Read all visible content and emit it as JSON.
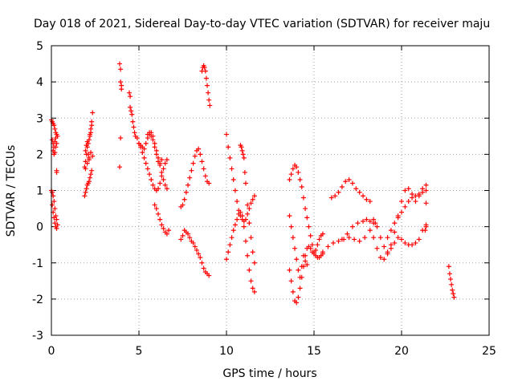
{
  "chart_data": {
    "type": "scatter",
    "title": "Day 018 of 2021, Sidereal Day-to-day VTEC variation (SDTVAR) for receiver maju",
    "xlabel": "GPS time / hours",
    "ylabel": "SDTVAR / TECUs",
    "xlim": [
      0,
      25
    ],
    "ylim": [
      -3,
      5
    ],
    "xticks": [
      "0",
      "5",
      "10",
      "15",
      "20",
      "25"
    ],
    "yticks": [
      "-3",
      "-2",
      "-1",
      "0",
      "1",
      "2",
      "3",
      "4",
      "5"
    ],
    "xtick_values": [
      0,
      5,
      10,
      15,
      20,
      25
    ],
    "ytick_values": [
      -3,
      -2,
      -1,
      0,
      1,
      2,
      3,
      4,
      5
    ],
    "grid": true,
    "marker": "+",
    "color": "#ff0000",
    "series": [
      {
        "values_x": [
          0.0,
          0.05,
          0.1,
          0.15,
          0.2,
          0.25,
          0.3,
          0.35,
          0.05,
          0.1,
          0.15,
          0.2,
          0.25,
          0.3,
          0.1,
          0.15,
          0.2,
          0.25,
          0.3,
          0.3,
          0.0,
          0.05,
          0.1,
          0.15,
          0.2,
          0.25,
          0.3,
          0.35,
          0.05,
          0.1,
          0.15,
          0.2,
          0.25,
          0.3
        ],
        "values_y": [
          2.95,
          2.9,
          2.85,
          2.8,
          2.7,
          2.6,
          2.55,
          2.5,
          2.4,
          2.3,
          2.2,
          2.35,
          2.45,
          2.3,
          2.1,
          2.0,
          2.05,
          2.2,
          1.55,
          1.5,
          1.0,
          0.95,
          0.85,
          0.7,
          0.5,
          0.3,
          0.2,
          0.05,
          0.6,
          0.4,
          0.25,
          0.1,
          0.0,
          -0.05
        ]
      },
      {
        "values_x": [
          1.9,
          1.95,
          2.0,
          2.05,
          2.1,
          2.15,
          2.2,
          2.25,
          2.3,
          2.35,
          1.95,
          2.0,
          2.05,
          2.1,
          2.15,
          2.2,
          2.25,
          2.3,
          1.9,
          1.95,
          2.0,
          2.05,
          2.1,
          2.15,
          2.2,
          2.25,
          2.3,
          2.35,
          1.95,
          2.05,
          2.15,
          2.25
        ],
        "values_y": [
          1.65,
          1.8,
          2.0,
          2.2,
          2.3,
          2.4,
          2.55,
          2.7,
          2.9,
          3.15,
          2.1,
          2.25,
          2.35,
          2.0,
          1.9,
          2.5,
          2.6,
          2.8,
          0.85,
          0.95,
          1.05,
          1.15,
          1.2,
          1.25,
          1.35,
          1.45,
          1.55,
          1.95,
          1.6,
          1.75,
          1.85,
          2.05
        ]
      },
      {
        "values_x": [
          3.9,
          3.95,
          3.95,
          4.0,
          4.0,
          3.95,
          3.9
        ],
        "values_y": [
          4.5,
          4.35,
          4.0,
          3.9,
          3.8,
          2.45,
          1.65
        ]
      },
      {
        "values_x": [
          4.45,
          4.5,
          4.5,
          4.55,
          4.6,
          4.65,
          4.7,
          4.75,
          4.8,
          4.9,
          5.0,
          5.1,
          5.2,
          5.3,
          5.4,
          5.5,
          5.6,
          5.7,
          5.8,
          5.9,
          6.0,
          6.1,
          6.2,
          6.3
        ],
        "values_y": [
          3.7,
          3.6,
          3.3,
          3.2,
          3.1,
          2.9,
          2.75,
          2.6,
          2.5,
          2.45,
          2.3,
          2.25,
          2.2,
          2.15,
          2.3,
          2.45,
          2.55,
          2.5,
          2.4,
          2.2,
          2.0,
          1.8,
          1.75,
          1.85
        ]
      },
      {
        "values_x": [
          5.0,
          5.1,
          5.2,
          5.3,
          5.4,
          5.5,
          5.6,
          5.7,
          5.8,
          5.9,
          6.0,
          6.1,
          6.2,
          6.3,
          6.4,
          6.5,
          6.6
        ],
        "values_y": [
          2.3,
          2.2,
          2.05,
          1.9,
          1.75,
          1.6,
          1.45,
          1.3,
          1.15,
          1.05,
          1.0,
          1.05,
          1.2,
          1.4,
          1.6,
          1.75,
          1.85
        ]
      },
      {
        "values_x": [
          5.5,
          5.6,
          5.7,
          5.8,
          5.9,
          6.0,
          6.1,
          6.2,
          6.3,
          6.4,
          6.5,
          6.6
        ],
        "values_y": [
          2.55,
          2.6,
          2.6,
          2.5,
          2.3,
          2.1,
          1.9,
          1.7,
          1.5,
          1.3,
          1.15,
          1.05
        ]
      },
      {
        "values_x": [
          5.9,
          6.0,
          6.1,
          6.2,
          6.3,
          6.4,
          6.5,
          6.6,
          6.7
        ],
        "values_y": [
          0.6,
          0.5,
          0.35,
          0.2,
          0.05,
          -0.05,
          -0.15,
          -0.2,
          -0.1
        ]
      },
      {
        "values_x": [
          7.4,
          7.5,
          7.6,
          7.7,
          7.8,
          7.9,
          8.0,
          8.1,
          8.2,
          8.3,
          8.4,
          8.5,
          8.6,
          8.7,
          8.8,
          8.9,
          9.0
        ],
        "values_y": [
          0.55,
          0.6,
          0.75,
          0.95,
          1.15,
          1.35,
          1.55,
          1.75,
          1.95,
          2.1,
          2.15,
          2.0,
          1.8,
          1.6,
          1.4,
          1.25,
          1.2
        ]
      },
      {
        "values_x": [
          7.4,
          7.5,
          7.6,
          7.7,
          7.8,
          7.9,
          8.0,
          8.1,
          8.2,
          8.3,
          8.4,
          8.5,
          8.6,
          8.7,
          8.8,
          8.9,
          9.0
        ],
        "values_y": [
          -0.35,
          -0.25,
          -0.1,
          -0.15,
          -0.2,
          -0.3,
          -0.4,
          -0.45,
          -0.55,
          -0.65,
          -0.75,
          -0.85,
          -1.0,
          -1.15,
          -1.25,
          -1.3,
          -1.35
        ]
      },
      {
        "values_x": [
          8.6,
          8.65,
          8.7,
          8.75,
          8.8,
          8.85,
          8.9,
          8.95,
          9.0,
          9.05
        ],
        "values_y": [
          4.3,
          4.4,
          4.45,
          4.4,
          4.3,
          4.1,
          3.9,
          3.7,
          3.5,
          3.35
        ]
      },
      {
        "values_x": [
          10.0,
          10.1,
          10.2,
          10.3,
          10.4,
          10.5,
          10.6,
          10.7,
          10.8,
          10.9,
          11.0,
          11.1,
          11.2,
          11.3,
          11.4,
          11.5,
          11.6
        ],
        "values_y": [
          2.55,
          2.2,
          1.9,
          1.6,
          1.3,
          1.0,
          0.7,
          0.45,
          0.3,
          0.2,
          0.15,
          0.2,
          0.35,
          0.5,
          0.65,
          0.75,
          0.85
        ]
      },
      {
        "values_x": [
          10.0,
          10.1,
          10.2,
          10.3,
          10.4,
          10.5,
          10.6,
          10.7,
          10.8,
          10.9,
          11.0,
          11.1,
          11.2,
          11.3,
          11.4,
          11.5,
          11.6
        ],
        "values_y": [
          -0.9,
          -0.7,
          -0.5,
          -0.3,
          -0.1,
          0.05,
          0.2,
          0.35,
          0.4,
          0.3,
          0.0,
          -0.4,
          -0.8,
          -1.2,
          -1.5,
          -1.7,
          -1.8
        ]
      },
      {
        "values_x": [
          10.8,
          10.85,
          10.9,
          10.95,
          11.0,
          11.05,
          11.1,
          11.2,
          11.3,
          11.4,
          11.5,
          11.6
        ],
        "values_y": [
          2.25,
          2.2,
          2.1,
          2.0,
          1.9,
          1.5,
          1.2,
          0.6,
          0.1,
          -0.3,
          -0.7,
          -1.0
        ]
      },
      {
        "values_x": [
          13.6,
          13.7,
          13.8,
          13.9,
          14.0,
          14.1,
          14.2,
          14.3,
          14.4,
          14.5,
          14.6,
          14.7,
          14.8,
          14.9,
          15.0,
          15.1,
          15.2,
          15.3,
          15.4,
          15.5
        ],
        "values_y": [
          1.3,
          1.45,
          1.6,
          1.7,
          1.65,
          1.5,
          1.3,
          1.1,
          0.8,
          0.5,
          0.25,
          0.0,
          -0.25,
          -0.5,
          -0.7,
          -0.8,
          -0.85,
          -0.85,
          -0.8,
          -0.75
        ]
      },
      {
        "values_x": [
          13.6,
          13.7,
          13.8,
          13.9,
          14.0,
          14.1,
          14.2,
          14.3,
          14.4,
          14.5,
          14.6,
          14.7,
          14.8,
          14.9,
          15.0,
          15.1,
          15.2,
          15.3,
          15.4,
          15.5
        ],
        "values_y": [
          -1.2,
          -1.5,
          -1.8,
          -2.05,
          -2.1,
          -1.95,
          -1.7,
          -1.4,
          -1.1,
          -0.8,
          -0.6,
          -0.55,
          -0.6,
          -0.7,
          -0.75,
          -0.65,
          -0.5,
          -0.35,
          -0.25,
          -0.2
        ]
      },
      {
        "values_x": [
          13.6,
          13.7,
          13.8,
          13.9,
          14.0,
          14.1,
          14.2,
          14.3,
          14.4,
          14.5,
          14.6
        ],
        "values_y": [
          0.3,
          0.0,
          -0.3,
          -0.6,
          -0.9,
          -1.2,
          -1.4,
          -1.1,
          -0.8,
          -0.95,
          -1.05
        ]
      },
      {
        "values_x": [
          15.5,
          15.8,
          16.1,
          16.4,
          16.7,
          17.0,
          17.3,
          17.6,
          17.9,
          18.2,
          18.5
        ],
        "values_y": [
          -0.7,
          -0.55,
          -0.45,
          -0.4,
          -0.35,
          -0.3,
          -0.35,
          -0.4,
          -0.3,
          -0.1,
          0.1
        ]
      },
      {
        "values_x": [
          16.0,
          16.2,
          16.4,
          16.6,
          16.8,
          17.0,
          17.2,
          17.4,
          17.6,
          17.8,
          18.0,
          18.2
        ],
        "values_y": [
          0.8,
          0.85,
          0.95,
          1.1,
          1.25,
          1.3,
          1.2,
          1.05,
          0.95,
          0.85,
          0.75,
          0.7
        ]
      },
      {
        "values_x": [
          16.6,
          16.9,
          17.2,
          17.5,
          17.8,
          18.0,
          18.2,
          18.4
        ],
        "values_y": [
          -0.35,
          -0.2,
          0.0,
          0.1,
          0.15,
          0.2,
          0.15,
          0.1
        ]
      },
      {
        "values_x": [
          18.4,
          18.6,
          18.8,
          19.0,
          19.2,
          19.4,
          19.6,
          19.8,
          20.0,
          20.2,
          20.4,
          20.6,
          20.8,
          21.0,
          21.2,
          21.4
        ],
        "values_y": [
          -0.3,
          -0.6,
          -0.85,
          -0.9,
          -0.75,
          -0.5,
          -0.15,
          0.3,
          0.7,
          1.0,
          1.05,
          0.9,
          0.7,
          0.85,
          1.05,
          1.15
        ]
      },
      {
        "values_x": [
          18.4,
          18.6,
          18.8,
          19.0,
          19.2,
          19.4,
          19.6,
          19.8,
          20.0,
          20.2,
          20.4,
          20.6,
          20.8,
          21.0,
          21.2,
          21.4
        ],
        "values_y": [
          0.2,
          0.0,
          -0.3,
          -0.55,
          -0.7,
          -0.6,
          -0.45,
          -0.3,
          -0.35,
          -0.45,
          -0.5,
          -0.5,
          -0.45,
          -0.35,
          -0.1,
          0.05
        ]
      },
      {
        "values_x": [
          19.2,
          19.4,
          19.6,
          19.8,
          20.0,
          20.2,
          20.4,
          20.6,
          20.8,
          21.0,
          21.2,
          21.4
        ],
        "values_y": [
          -0.3,
          -0.1,
          0.1,
          0.25,
          0.4,
          0.55,
          0.7,
          0.8,
          0.85,
          0.9,
          0.95,
          1.0
        ]
      },
      {
        "values_x": [
          21.4,
          21.4,
          21.35
        ],
        "values_y": [
          0.65,
          0.0,
          -0.1
        ]
      },
      {
        "values_x": [
          22.7,
          22.75,
          22.8,
          22.85,
          22.9,
          22.95,
          23.0
        ],
        "values_y": [
          -1.1,
          -1.3,
          -1.45,
          -1.6,
          -1.75,
          -1.85,
          -1.95
        ]
      }
    ]
  }
}
